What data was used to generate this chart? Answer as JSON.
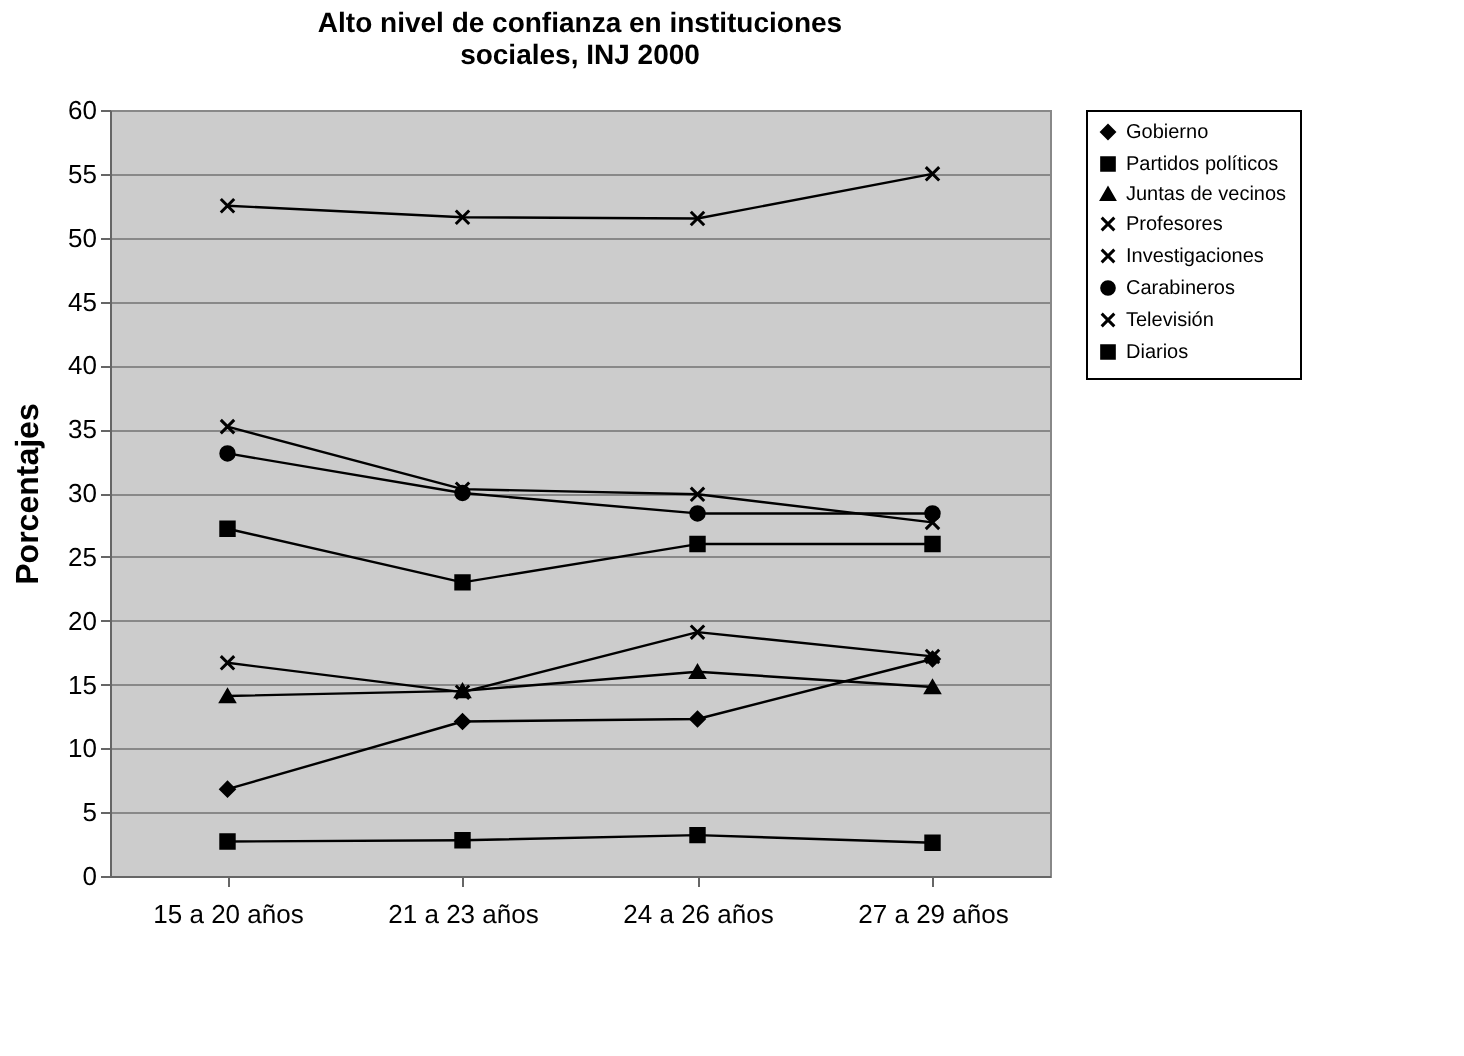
{
  "chart_data": {
    "type": "line",
    "title": "Alto nivel de confianza en instituciones sociales, INJ 2000",
    "ylabel": "Porcentajes",
    "categories": [
      "15 a 20 años",
      "21 a 23 años",
      "24 a 26 años",
      "27 a 29 años"
    ],
    "series": [
      {
        "name": "Gobierno",
        "color": "#000000",
        "marker": "diamond",
        "values": [
          6.8,
          12.1,
          12.3,
          17.0
        ]
      },
      {
        "name": "Partidos políticos",
        "color": "#000000",
        "marker": "square",
        "values": [
          2.7,
          2.8,
          3.2,
          2.6
        ]
      },
      {
        "name": "Juntas de vecinos",
        "color": "#000000",
        "marker": "triangle",
        "values": [
          14.1,
          14.5,
          16.0,
          14.8
        ]
      },
      {
        "name": "Profesores",
        "color": "#000000",
        "marker": "cross",
        "values": [
          52.5,
          51.6,
          51.5,
          55.0
        ]
      },
      {
        "name": "Investigaciones",
        "color": "#000000",
        "marker": "cross",
        "values": [
          35.2,
          30.3,
          29.9,
          27.7
        ]
      },
      {
        "name": "Carabineros",
        "color": "#000000",
        "marker": "circle",
        "values": [
          33.1,
          30.0,
          28.4,
          28.4
        ]
      },
      {
        "name": "Televisión",
        "color": "#000000",
        "marker": "cross",
        "values": [
          16.7,
          14.4,
          19.1,
          17.2
        ]
      },
      {
        "name": "Diarios",
        "color": "#000000",
        "marker": "square",
        "values": [
          27.2,
          23.0,
          26.0,
          26.0
        ]
      }
    ],
    "ylim": [
      0,
      60
    ],
    "yticks": [
      0,
      5,
      10,
      15,
      20,
      25,
      30,
      35,
      40,
      45,
      50,
      55,
      60
    ],
    "grid": "y",
    "legend": "right"
  }
}
